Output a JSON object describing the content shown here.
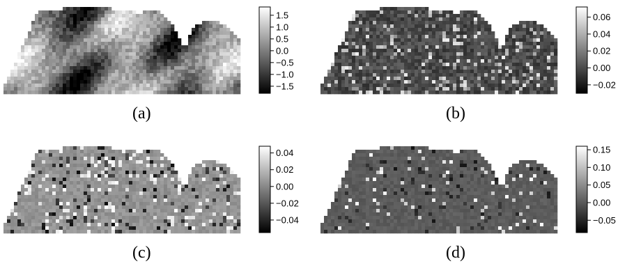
{
  "chart_data": [
    {
      "type": "heatmap",
      "caption": "(a)",
      "colorbar": {
        "ticks": [
          1.5,
          1.0,
          0.5,
          0.0,
          -0.5,
          -1.0,
          -1.5
        ],
        "tick_labels": [
          "1.5",
          "1.0",
          "0.5",
          "0.0",
          "−0.5",
          "−1.0",
          "−1.5"
        ],
        "range": [
          -1.8,
          1.85
        ]
      },
      "colormap": [
        "#000000",
        "#ffffff"
      ]
    },
    {
      "type": "heatmap",
      "caption": "(b)",
      "colorbar": {
        "ticks": [
          0.06,
          0.04,
          0.02,
          0.0,
          -0.02
        ],
        "tick_labels": [
          "0.06",
          "0.04",
          "0.02",
          "0.00",
          "−0.02"
        ],
        "range": [
          -0.03,
          0.072
        ]
      },
      "colormap": [
        "#000000",
        "#ffffff"
      ]
    },
    {
      "type": "heatmap",
      "caption": "(c)",
      "colorbar": {
        "ticks": [
          0.04,
          0.02,
          0.0,
          -0.02,
          -0.04
        ],
        "tick_labels": [
          "0.04",
          "0.02",
          "0.00",
          "−0.02",
          "−0.04"
        ],
        "range": [
          -0.055,
          0.048
        ]
      },
      "colormap": [
        "#000000",
        "#ffffff"
      ]
    },
    {
      "type": "heatmap",
      "caption": "(d)",
      "colorbar": {
        "ticks": [
          0.15,
          0.1,
          0.05,
          0.0,
          -0.05
        ],
        "tick_labels": [
          "0.15",
          "0.10",
          "0.05",
          "0.00",
          "−0.05"
        ],
        "range": [
          -0.085,
          0.16
        ]
      },
      "colormap": [
        "#000000",
        "#ffffff"
      ]
    }
  ]
}
